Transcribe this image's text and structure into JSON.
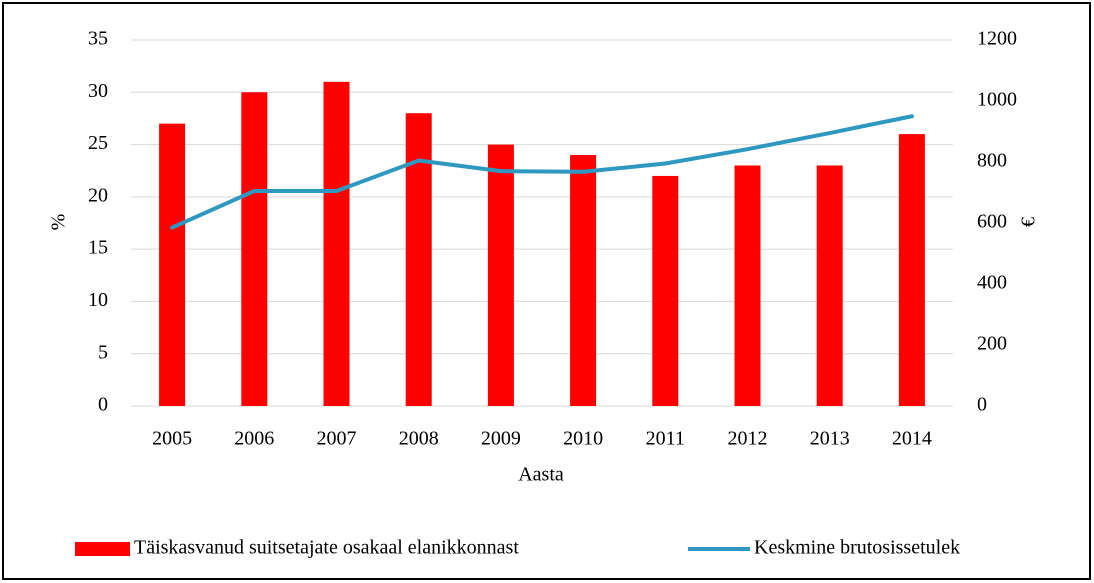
{
  "chart_data": {
    "type": "bar",
    "categories": [
      "2005",
      "2006",
      "2007",
      "2008",
      "2009",
      "2010",
      "2011",
      "2012",
      "2013",
      "2014"
    ],
    "series": [
      {
        "name": "Täiskasvanud suitsetajate osakaal elanikkonnast",
        "type": "bar",
        "color": "#ff0000",
        "values": [
          27,
          30,
          31,
          28,
          25,
          24,
          22,
          23,
          23,
          26
        ]
      },
      {
        "name": "Keskmine brutosissetulek",
        "type": "line",
        "axis": "y2",
        "color": "#2e98c0",
        "values": [
          585,
          705,
          705,
          805,
          770,
          768,
          795,
          842,
          895,
          950
        ]
      }
    ],
    "xlabel": "Aasta",
    "ylabel": "%",
    "y2label": "€",
    "ylim": [
      0,
      35
    ],
    "yticks": [
      0,
      5,
      10,
      15,
      20,
      25,
      30,
      35
    ],
    "y2lim": [
      0,
      1200
    ],
    "y2ticks": [
      0,
      200,
      400,
      600,
      800,
      1000,
      1200
    ],
    "grid": true,
    "legend": "bottom"
  }
}
